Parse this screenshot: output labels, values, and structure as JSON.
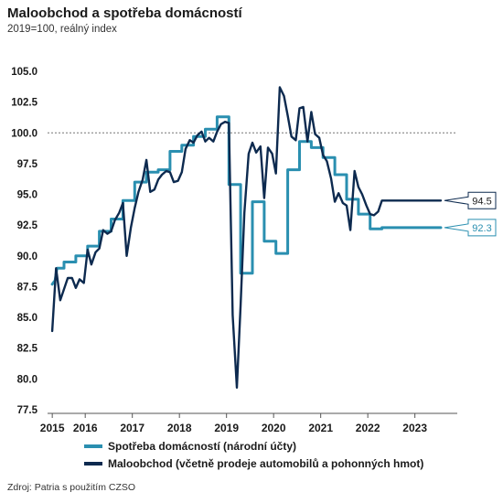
{
  "chart_data": {
    "type": "line",
    "title": "Maloobchod a spotřeba domácností",
    "subtitle": "2019=100, reálný index",
    "ylim": [
      77.5,
      105.0
    ],
    "xlim": [
      2014.9,
      2023.6
    ],
    "y_ticks": [
      "77.5",
      "80.0",
      "82.5",
      "85.0",
      "87.5",
      "90.0",
      "92.5",
      "95.0",
      "97.5",
      "100.0",
      "102.5",
      "105.0"
    ],
    "x_ticks": [
      {
        "value": 2015.0,
        "label": "2015"
      },
      {
        "value": 2015.7,
        "label": "2016"
      },
      {
        "value": 2016.7,
        "label": "2017"
      },
      {
        "value": 2017.7,
        "label": "2018"
      },
      {
        "value": 2018.7,
        "label": "2019"
      },
      {
        "value": 2019.7,
        "label": "2020"
      },
      {
        "value": 2020.7,
        "label": "2021"
      },
      {
        "value": 2021.7,
        "label": "2022"
      },
      {
        "value": 2022.7,
        "label": "2023"
      }
    ],
    "reference_line": 100.0,
    "grid": false,
    "legend_position": "bottom",
    "series": [
      {
        "name": "Spotřeba domácností (národní účty)",
        "color": "#2a8fb0",
        "end_label": "92.3",
        "x": [
          2015.0,
          2015.06,
          2015.1,
          2015.25,
          2015.25,
          2015.5,
          2015.5,
          2015.75,
          2015.75,
          2016.0,
          2016.0,
          2016.25,
          2016.25,
          2016.5,
          2016.5,
          2016.75,
          2016.75,
          2017.0,
          2017.0,
          2017.25,
          2017.25,
          2017.5,
          2017.5,
          2017.75,
          2017.75,
          2018.0,
          2018.0,
          2018.25,
          2018.25,
          2018.5,
          2018.5,
          2018.75,
          2018.75,
          2019.0,
          2019.0,
          2019.25,
          2019.25,
          2019.5,
          2019.5,
          2019.75,
          2019.75,
          2020.0,
          2020.0,
          2020.25,
          2020.25,
          2020.5,
          2020.5,
          2020.75,
          2020.75,
          2021.0,
          2021.0,
          2021.25,
          2021.25,
          2021.5,
          2021.5,
          2021.75,
          2021.75,
          2022.0,
          2022.0,
          2022.25,
          2022.25,
          2022.5,
          2022.5,
          2022.75,
          2022.75,
          2023.0,
          2023.0,
          2023.25
        ],
        "values": [
          87.7,
          88.0,
          89.0,
          89.0,
          89.5,
          89.5,
          90.0,
          90.0,
          90.8,
          90.8,
          92.0,
          92.0,
          93.0,
          93.0,
          94.5,
          94.5,
          96.0,
          96.0,
          96.8,
          96.8,
          97.0,
          97.0,
          98.5,
          98.5,
          99.0,
          99.0,
          99.7,
          99.7,
          100.3,
          100.3,
          101.3,
          101.3,
          95.8,
          95.8,
          88.6,
          88.6,
          94.4,
          94.4,
          91.2,
          91.2,
          90.2,
          90.2,
          97.0,
          97.0,
          99.3,
          99.3,
          98.8,
          98.8,
          98.0,
          98.0,
          96.6,
          96.6,
          94.6,
          94.6,
          93.4,
          93.4,
          92.2,
          92.2,
          92.3,
          92.3,
          92.3,
          92.3,
          92.3,
          92.3,
          92.3,
          92.3,
          92.3,
          92.3
        ]
      },
      {
        "name": "Maloobchod (včetně prodeje automobilů a pohonných hmot)",
        "color": "#0d2a4f",
        "end_label": "94.5",
        "x": [
          2015.0,
          2015.08,
          2015.17,
          2015.25,
          2015.33,
          2015.42,
          2015.5,
          2015.58,
          2015.67,
          2015.75,
          2015.83,
          2015.92,
          2016.0,
          2016.08,
          2016.17,
          2016.25,
          2016.33,
          2016.42,
          2016.5,
          2016.58,
          2016.67,
          2016.75,
          2016.83,
          2016.92,
          2017.0,
          2017.08,
          2017.17,
          2017.25,
          2017.33,
          2017.42,
          2017.5,
          2017.58,
          2017.67,
          2017.75,
          2017.83,
          2017.92,
          2018.0,
          2018.08,
          2018.17,
          2018.25,
          2018.33,
          2018.42,
          2018.5,
          2018.58,
          2018.67,
          2018.75,
          2018.83,
          2018.92,
          2019.0,
          2019.08,
          2019.17,
          2019.25,
          2019.33,
          2019.42,
          2019.5,
          2019.58,
          2019.67,
          2019.75,
          2019.83,
          2019.92,
          2020.0,
          2020.08,
          2020.17,
          2020.25,
          2020.33,
          2020.42,
          2020.5,
          2020.58,
          2020.67,
          2020.75,
          2020.83,
          2020.92,
          2021.0,
          2021.08,
          2021.17,
          2021.25,
          2021.33,
          2021.42,
          2021.5,
          2021.58,
          2021.67,
          2021.75,
          2021.83,
          2021.92,
          2022.0,
          2022.08,
          2022.17,
          2022.25,
          2022.33,
          2022.42,
          2022.5,
          2022.58,
          2022.67,
          2022.75,
          2022.83,
          2022.92,
          2023.0,
          2023.08,
          2023.17,
          2023.25
        ],
        "values": [
          83.9,
          89.0,
          86.4,
          87.3,
          88.2,
          88.2,
          87.4,
          88.1,
          87.8,
          90.5,
          89.3,
          90.3,
          90.6,
          92.1,
          91.8,
          92.0,
          92.9,
          93.5,
          94.3,
          90.0,
          92.3,
          93.9,
          95.2,
          96.2,
          97.8,
          95.2,
          95.4,
          96.2,
          96.6,
          96.9,
          96.8,
          96.0,
          96.1,
          96.8,
          98.7,
          99.4,
          99.2,
          99.8,
          100.1,
          99.3,
          99.6,
          99.3,
          100.1,
          100.7,
          100.9,
          100.8,
          85.2,
          79.3,
          86.0,
          93.5,
          98.3,
          99.2,
          98.4,
          98.9,
          94.7,
          98.8,
          98.3,
          96.7,
          103.7,
          103.0,
          101.4,
          99.7,
          99.4,
          102.0,
          102.1,
          99.3,
          101.7,
          99.9,
          99.6,
          98.2,
          97.7,
          96.3,
          94.4,
          95.1,
          94.3,
          94.1,
          92.1,
          96.9,
          95.6,
          95.0,
          94.1,
          93.4,
          93.3,
          93.6,
          94.5,
          94.5,
          94.5,
          94.5,
          94.5,
          94.5,
          94.5,
          94.5,
          94.5,
          94.5,
          94.5,
          94.5,
          94.5,
          94.5,
          94.5,
          94.5
        ]
      }
    ]
  },
  "source": "Zdroj: Patria s použitím CZSO"
}
